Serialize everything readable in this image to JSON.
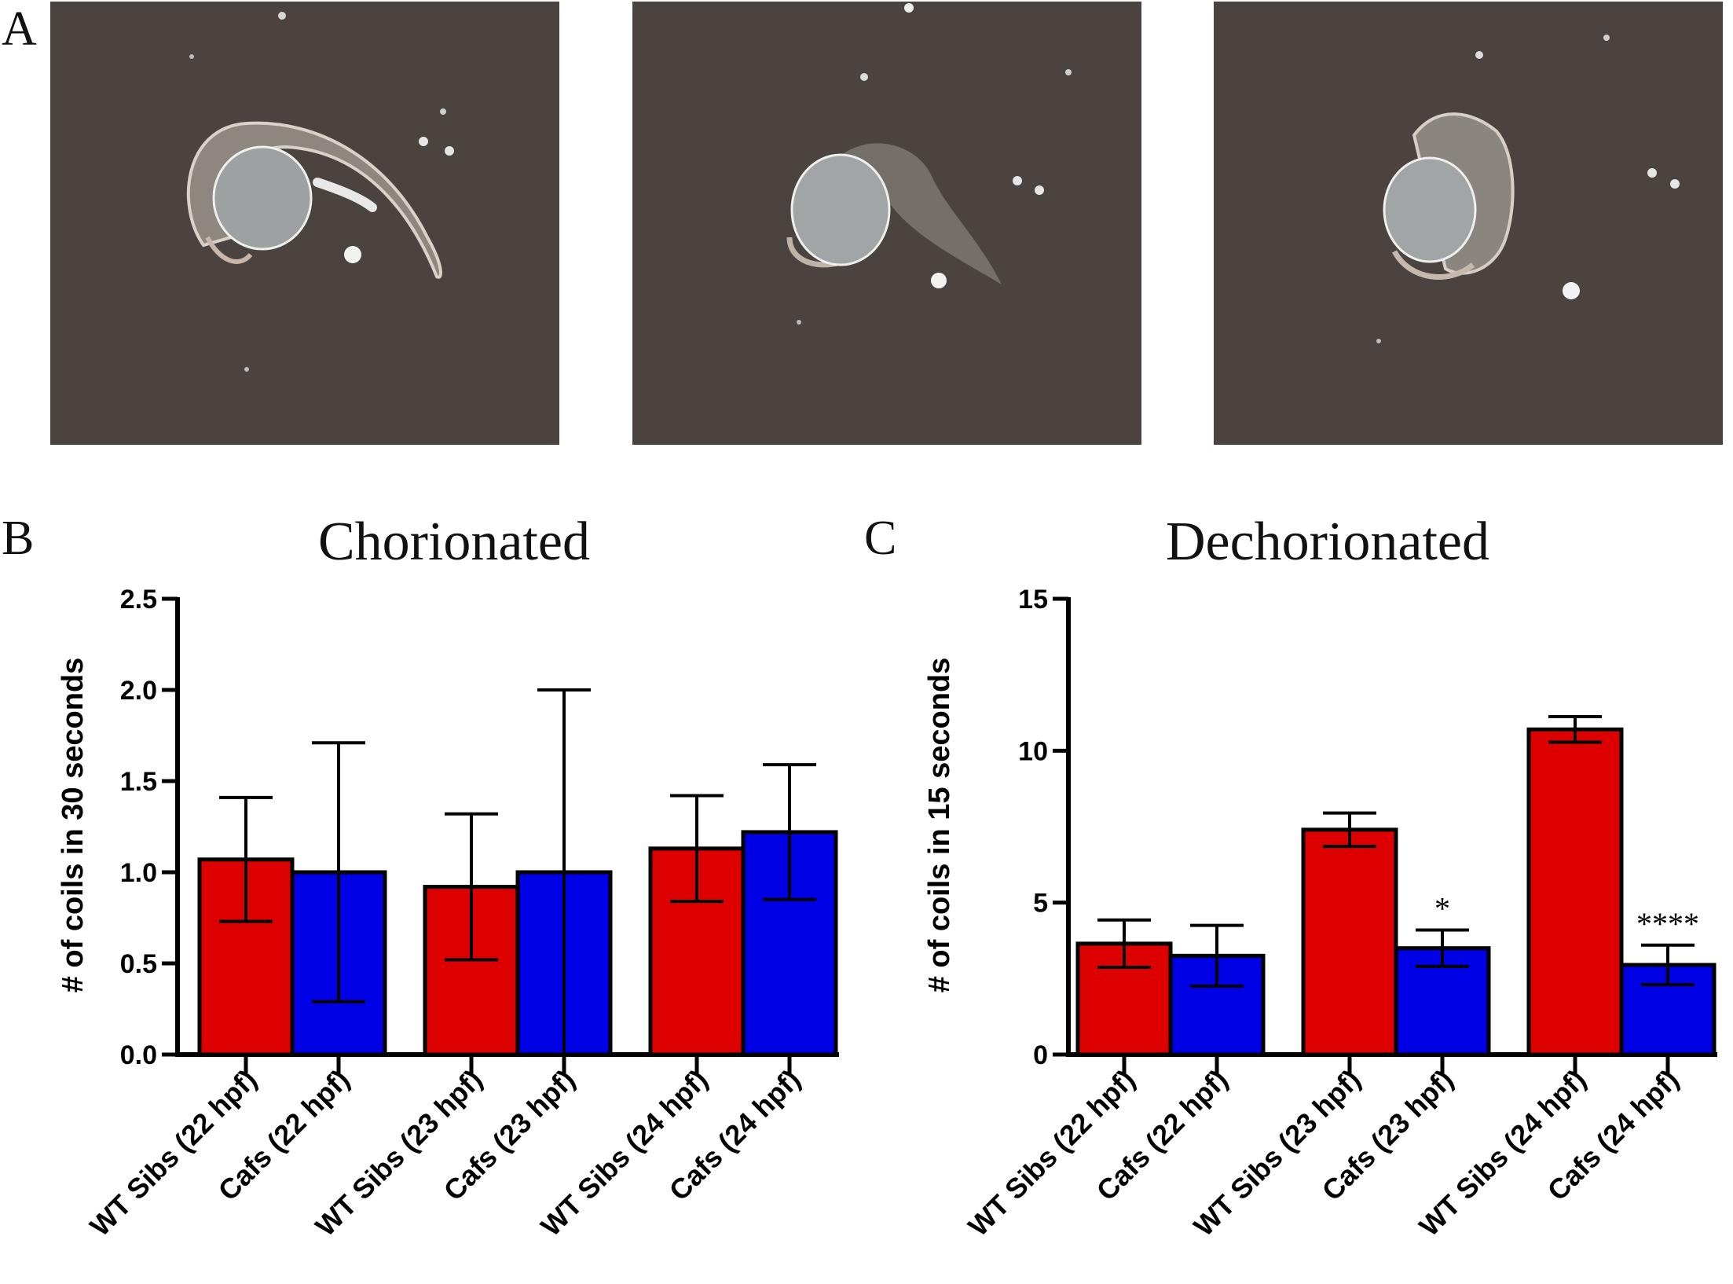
{
  "panel_a": {
    "letter": "A",
    "images": [
      {
        "name": "embryo-image-1",
        "tail": "extended"
      },
      {
        "name": "embryo-image-2",
        "tail": "partly-curled"
      },
      {
        "name": "embryo-image-3",
        "tail": "curled"
      }
    ],
    "background_color": "#4a4340"
  },
  "panel_b": {
    "letter": "B"
  },
  "panel_c": {
    "letter": "C"
  },
  "colors": {
    "wt": "#dd0000",
    "cafs": "#0000e6"
  },
  "chart_data": [
    {
      "type": "bar",
      "title": "Chorionated",
      "ylabel": "# of coils in 30 seconds",
      "ylim": [
        0,
        2.5
      ],
      "yticks": [
        "0.0",
        "0.5",
        "1.0",
        "1.5",
        "2.0",
        "2.5"
      ],
      "ytick_values": [
        0,
        0.5,
        1.0,
        1.5,
        2.0,
        2.5
      ],
      "grid": false,
      "categories": [
        "WT Sibs (22 hpf)",
        "Cafs (22 hpf)",
        "WT Sibs (23 hpf)",
        "Cafs  (23 hpf)",
        "WT Sibs (24 hpf)",
        "Cafs (24 hpf)"
      ],
      "values": [
        1.07,
        1.0,
        0.92,
        1.0,
        1.13,
        1.22
      ],
      "error": [
        0.34,
        0.71,
        0.4,
        1.0,
        0.29,
        0.37
      ],
      "group": [
        "wt",
        "cafs",
        "wt",
        "cafs",
        "wt",
        "cafs"
      ],
      "annotations": [
        "",
        "",
        "",
        "",
        "",
        ""
      ]
    },
    {
      "type": "bar",
      "title": "Dechorionated",
      "ylabel": "# of coils in 15 seconds",
      "ylim": [
        0,
        15
      ],
      "yticks": [
        "0",
        "5",
        "10",
        "15"
      ],
      "ytick_values": [
        0,
        5,
        10,
        15
      ],
      "grid": false,
      "categories": [
        "WT Sibs (22 hpf)",
        "Cafs (22 hpf)",
        "WT Sibs (23 hpf)",
        "Cafs  (23 hpf)",
        "WT Sibs (24 hpf)",
        "Cafs (24 hpf)"
      ],
      "values": [
        3.65,
        3.25,
        7.4,
        3.5,
        10.7,
        2.95
      ],
      "error": [
        0.78,
        1.0,
        0.55,
        0.6,
        0.42,
        0.65
      ],
      "group": [
        "wt",
        "cafs",
        "wt",
        "cafs",
        "wt",
        "cafs"
      ],
      "annotations": [
        "",
        "",
        "",
        "*",
        "",
        "****"
      ]
    }
  ]
}
